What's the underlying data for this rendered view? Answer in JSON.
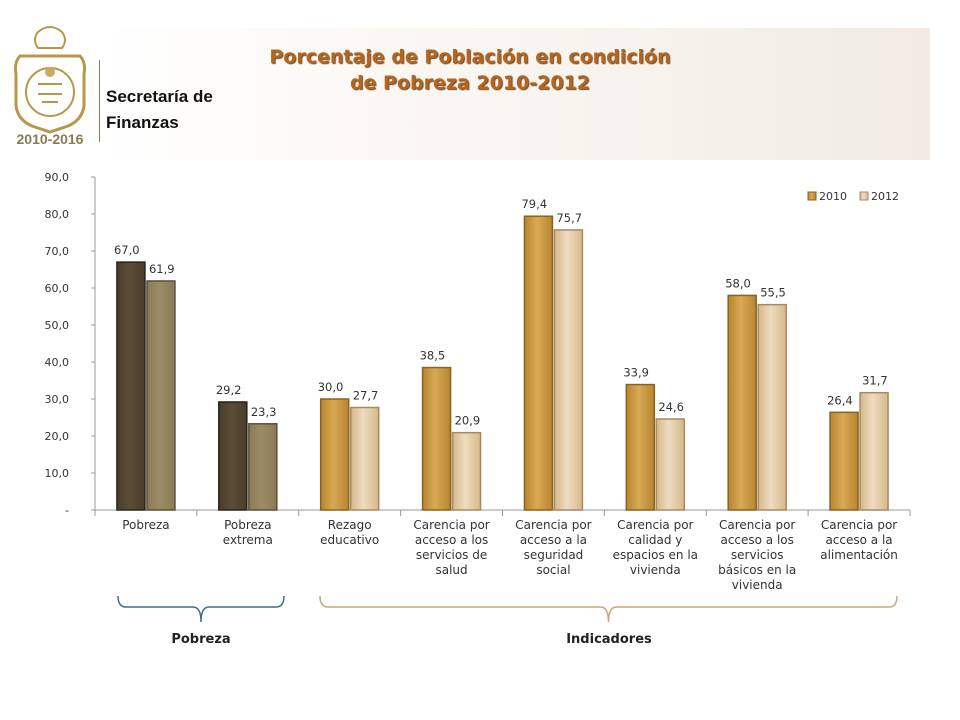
{
  "header": {
    "title_line1": "Porcentaje de Población en condición",
    "title_line2": "de Pobreza 2010-2012",
    "dept_line1": "Secretaría de",
    "dept_line2": "Finanzas",
    "logo_years": "2010-2016"
  },
  "chart_data": {
    "type": "bar",
    "categories": [
      "Pobreza",
      "Pobreza extrema",
      "Rezago educativo",
      "Carencia por acceso a los servicios de salud",
      "Carencia por acceso a la seguridad social",
      "Carencia por calidad y espacios en la vivienda",
      "Carencia por acceso a los servicios básicos en la vivienda",
      "Carencia por acceso a la alimentación"
    ],
    "category_lines": [
      [
        "Pobreza"
      ],
      [
        "Pobreza",
        "extrema"
      ],
      [
        "Rezago",
        "educativo"
      ],
      [
        "Carencia por",
        "acceso a los",
        "servicios de",
        "salud"
      ],
      [
        "Carencia por",
        "acceso a la",
        "seguridad",
        "social"
      ],
      [
        "Carencia por",
        "calidad y",
        "espacios en la",
        "vivienda"
      ],
      [
        "Carencia por",
        "acceso a los",
        "servicios",
        "básicos en la",
        "vivienda"
      ],
      [
        "Carencia por",
        "acceso a la",
        "alimentación"
      ]
    ],
    "series": [
      {
        "name": "2010",
        "values": [
          67.0,
          29.2,
          30.0,
          38.5,
          79.4,
          33.9,
          58.0,
          26.4
        ]
      },
      {
        "name": "2012",
        "values": [
          61.9,
          23.3,
          27.7,
          20.9,
          75.7,
          24.6,
          55.5,
          31.7
        ]
      }
    ],
    "value_labels": {
      "2010": [
        "67,0",
        "29,2",
        "30,0",
        "38,5",
        "79,4",
        "33,9",
        "58,0",
        "26,4"
      ],
      "2012": [
        "61,9",
        "23,3",
        "27,7",
        "20,9",
        "75,7",
        "24,6",
        "55,5",
        "31,7"
      ]
    },
    "ylim": [
      0,
      90
    ],
    "y_ticks": [
      "-",
      "10,0",
      "20,0",
      "30,0",
      "40,0",
      "50,0",
      "60,0",
      "70,0",
      "80,0",
      "90,0"
    ],
    "legend_position": "top-right",
    "groups": [
      {
        "label": "Pobreza",
        "categories": [
          0,
          1
        ]
      },
      {
        "label": "Indicadores",
        "categories": [
          2,
          3,
          4,
          5,
          6,
          7
        ]
      }
    ],
    "colors": {
      "pobreza_2010": "#4a3c2a",
      "pobreza_2012": "#8a7a55",
      "indicadores_2010": "#b8852f",
      "indicadores_2012": "#d6b88a",
      "pobreza_bracket": "#3a6f90",
      "indicadores_bracket": "#c8a878"
    }
  }
}
